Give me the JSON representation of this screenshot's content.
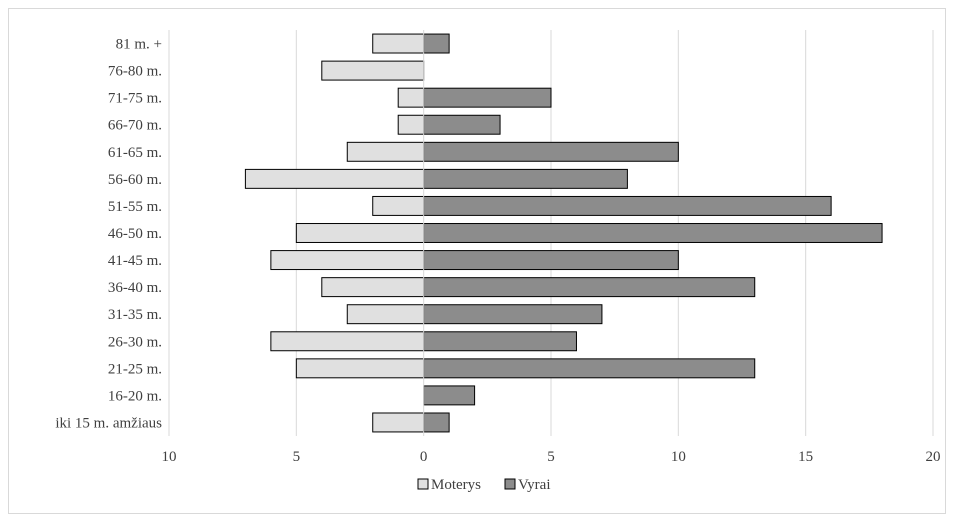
{
  "chart_data": {
    "type": "bar",
    "orientation": "horizontal",
    "categories": [
      "81 m. +",
      "76-80 m.",
      "71-75 m.",
      "66-70 m.",
      "61-65 m.",
      "56-60 m.",
      "51-55 m.",
      "46-50 m.",
      "41-45 m.",
      "36-40 m.",
      "31-35 m.",
      "26-30 m.",
      "21-25 m.",
      "16-20 m.",
      "iki 15 m. amžiaus"
    ],
    "series": [
      {
        "name": "Moterys",
        "values": [
          -2,
          -4,
          -1,
          -1,
          -3,
          -7,
          -2,
          -5,
          -6,
          -4,
          -3,
          -6,
          -5,
          0,
          -2
        ],
        "color": "#e0e0e0"
      },
      {
        "name": "Vyrai",
        "values": [
          1,
          0,
          5,
          3,
          10,
          8,
          16,
          18,
          10,
          13,
          7,
          6,
          13,
          2,
          1
        ],
        "color": "#8c8c8c"
      }
    ],
    "xlim": [
      -10,
      20
    ],
    "xticks": [
      -10,
      -5,
      0,
      5,
      10,
      15,
      20
    ],
    "xtick_labels": [
      "10",
      "5",
      "0",
      "5",
      "10",
      "15",
      "20"
    ],
    "grid": "vertical",
    "legend": "bottom-center",
    "title": "",
    "xlabel": "",
    "ylabel": ""
  }
}
